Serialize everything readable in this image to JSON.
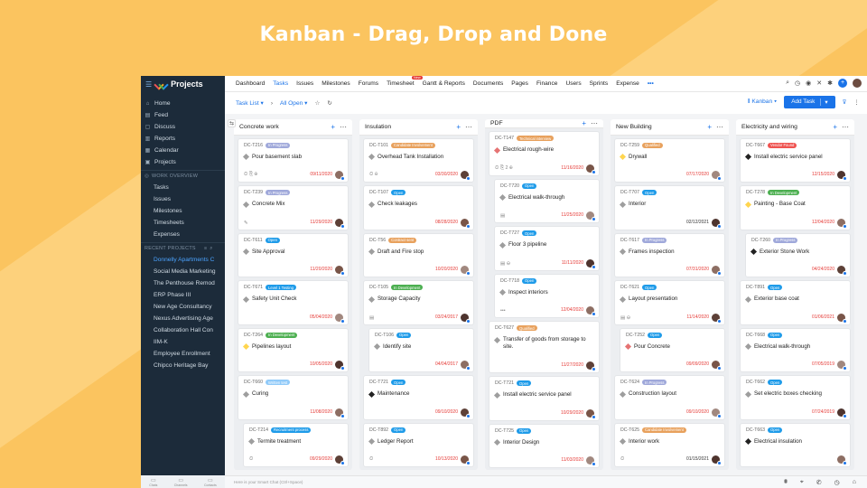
{
  "headline": "Kanban - Drag, Drop and Done",
  "sidebar": {
    "app_name": "Projects",
    "nav": [
      {
        "label": "Home",
        "icon": "home-icon",
        "glyph": "⌂"
      },
      {
        "label": "Feed",
        "icon": "feed-icon",
        "glyph": "▤"
      },
      {
        "label": "Discuss",
        "icon": "discuss-icon",
        "glyph": "▢"
      },
      {
        "label": "Reports",
        "icon": "reports-icon",
        "glyph": "▥"
      },
      {
        "label": "Calendar",
        "icon": "calendar-icon",
        "glyph": "▦"
      },
      {
        "label": "Projects",
        "icon": "projects-icon",
        "glyph": "▣"
      }
    ],
    "work_overview_title": "WORK OVERVIEW",
    "work_items": [
      "Tasks",
      "Issues",
      "Milestones",
      "Timesheets",
      "Expenses"
    ],
    "recent_title": "RECENT PROJECTS",
    "recent_projects": [
      "Donnelly Apartments C",
      "Social Media Marketing",
      "The Penthouse Remod",
      "ERP Phase III",
      "New Age Consultancy",
      "Nexus Advertising Age",
      "Collaboration Hall Con",
      "IIM-K",
      "Employee Enrollment",
      "Chipco Heritage Bay"
    ],
    "footer": [
      "Chats",
      "Channels",
      "Contacts"
    ]
  },
  "topnav": {
    "tabs": [
      "Dashboard",
      "Tasks",
      "Issues",
      "Milestones",
      "Forums",
      "Timesheet",
      "Gantt & Reports",
      "Documents",
      "Pages",
      "Finance",
      "Users",
      "Sprints",
      "Expense"
    ],
    "active": "Tasks",
    "timesheet_badge": "New",
    "more": "•••"
  },
  "toolbar": {
    "task_list": "Task List",
    "filter": "All Open",
    "view": "Kanban",
    "add_task": "Add Task"
  },
  "colors": {
    "blue": "#1a73e8",
    "pill_blue": "#1e9be9",
    "pill_lavender": "#9fa8da",
    "pill_orange": "#e8a15d",
    "pill_green": "#4caf50",
    "pill_red": "#ef5350",
    "pill_lightblue": "#90caf9",
    "diamond_gray": "#9e9e9e",
    "diamond_red": "#e57373",
    "diamond_yellow": "#ffd54f",
    "diamond_black": "#222222"
  },
  "columns": [
    {
      "title": "Concrete work",
      "cards": [
        {
          "id": "DC-T216",
          "status": "In Progress",
          "color": "#9fa8da",
          "title": "Pour basement slab",
          "date": "09/11/2020",
          "overdue": true,
          "diamond": "#9e9e9e",
          "meta": "⏲ ⎘ ⊕",
          "indent": false
        },
        {
          "id": "DC-T239",
          "status": "In Progress",
          "color": "#9fa8da",
          "title": "Concrete Mix",
          "date": "11/29/2020",
          "overdue": true,
          "diamond": "#9e9e9e",
          "meta": "✎",
          "indent": false
        },
        {
          "id": "DC-T611",
          "status": "Open",
          "color": "#1e9be9",
          "title": "Site Approval",
          "date": "11/20/2020",
          "overdue": true,
          "diamond": "#9e9e9e",
          "meta": "",
          "indent": false
        },
        {
          "id": "DC-T671",
          "status": "Level 1 Testing",
          "color": "#1e9be9",
          "title": "Safety Unit Check",
          "date": "05/04/2020",
          "overdue": true,
          "diamond": "#9e9e9e",
          "meta": "",
          "indent": false
        },
        {
          "id": "DC-T264",
          "status": "In Development",
          "color": "#4caf50",
          "title": "Pipelines layout",
          "date": "10/05/2020",
          "overdue": true,
          "diamond": "#ffd54f",
          "meta": "",
          "indent": false
        },
        {
          "id": "DC-T660",
          "status": "Written test",
          "color": "#90caf9",
          "title": "Curing",
          "date": "11/08/2020",
          "overdue": true,
          "diamond": "#9e9e9e",
          "meta": "",
          "indent": false
        },
        {
          "id": "DC-T214",
          "status": "Recruitment process",
          "color": "#1e9be9",
          "title": "Termite treatment",
          "date": "09/29/2020",
          "overdue": true,
          "diamond": "#9e9e9e",
          "meta": "⏲",
          "indent": true
        }
      ]
    },
    {
      "title": "Insulation",
      "cards": [
        {
          "id": "DC-T101",
          "status": "Candidate Involvement",
          "color": "#e8a15d",
          "title": "Overhead Tank Installation",
          "date": "03/30/2020",
          "overdue": true,
          "diamond": "#9e9e9e",
          "meta": "⏲ ⊖",
          "indent": false
        },
        {
          "id": "DC-T107",
          "status": "Open",
          "color": "#1e9be9",
          "title": "Check leakages",
          "date": "08/28/2020",
          "overdue": true,
          "diamond": "#9e9e9e",
          "meta": "",
          "indent": false
        },
        {
          "id": "DC-T56",
          "status": "Contract sent",
          "color": "#e8a15d",
          "title": "Draft and Fire stop",
          "date": "10/20/2020",
          "overdue": true,
          "diamond": "#9e9e9e",
          "meta": "",
          "indent": false
        },
        {
          "id": "DC-T105",
          "status": "In Development",
          "color": "#4caf50",
          "title": "Storage Capacity",
          "date": "03/24/2017",
          "overdue": true,
          "diamond": "#9e9e9e",
          "meta": "▤",
          "indent": false
        },
        {
          "id": "DC-T106",
          "status": "Open",
          "color": "#1e9be9",
          "title": "Identify site",
          "date": "04/04/2017",
          "overdue": true,
          "diamond": "#9e9e9e",
          "meta": "",
          "indent": true
        },
        {
          "id": "DC-T721",
          "status": "Open",
          "color": "#1e9be9",
          "title": "Maintenance",
          "date": "09/10/2020",
          "overdue": true,
          "diamond": "#222222",
          "meta": "",
          "indent": false
        },
        {
          "id": "DC-T892",
          "status": "Open",
          "color": "#1e9be9",
          "title": "Ledger Report",
          "date": "10/13/2020",
          "overdue": true,
          "diamond": "#9e9e9e",
          "meta": "⏲",
          "indent": false
        }
      ]
    },
    {
      "title": "PDF",
      "cards": [
        {
          "id": "DC-T147",
          "status": "Technical interview",
          "color": "#e8a15d",
          "title": "Electrical rough-wire",
          "date": "11/16/2020",
          "overdue": true,
          "diamond": "#e57373",
          "meta": "⏲ ⎘ 2 ⊕",
          "indent": false
        },
        {
          "id": "DC-T720",
          "status": "Open",
          "color": "#1e9be9",
          "title": "Electrical walk-through",
          "date": "11/25/2020",
          "overdue": true,
          "diamond": "#9e9e9e",
          "meta": "▤",
          "indent": true
        },
        {
          "id": "DC-T727",
          "status": "Open",
          "color": "#1e9be9",
          "title": "Floor 3 pipeline",
          "date": "11/11/2020",
          "overdue": true,
          "diamond": "#9e9e9e",
          "meta": "▤ ⊖",
          "indent": true
        },
        {
          "id": "DC-T718",
          "status": "Open",
          "color": "#1e9be9",
          "title": "Inspect interiors",
          "date": "12/04/2020",
          "overdue": true,
          "diamond": "#9e9e9e",
          "meta": "•••",
          "indent": true
        },
        {
          "id": "DC-T627",
          "status": "Qualified",
          "color": "#e8a15d",
          "title": "Transfer of goods from storage to site.",
          "date": "11/27/2020",
          "overdue": true,
          "diamond": "#9e9e9e",
          "meta": "",
          "indent": false,
          "tall": true
        },
        {
          "id": "DC-T721",
          "status": "Open",
          "color": "#1e9be9",
          "title": "Install electric service panel",
          "date": "10/29/2020",
          "overdue": true,
          "diamond": "#9e9e9e",
          "meta": "",
          "indent": false
        },
        {
          "id": "DC-T725",
          "status": "Open",
          "color": "#1e9be9",
          "title": "Interior Design",
          "date": "11/03/2020",
          "overdue": true,
          "diamond": "#9e9e9e",
          "meta": "",
          "indent": false
        }
      ]
    },
    {
      "title": "New Building",
      "cards": [
        {
          "id": "DC-T259",
          "status": "Qualified",
          "color": "#e8a15d",
          "title": "Drywall",
          "date": "07/17/2020",
          "overdue": true,
          "diamond": "#ffd54f",
          "meta": "",
          "indent": false
        },
        {
          "id": "DC-T707",
          "status": "Open",
          "color": "#1e9be9",
          "title": "Interior",
          "date": "02/12/2021",
          "overdue": false,
          "diamond": "#9e9e9e",
          "meta": "",
          "indent": false
        },
        {
          "id": "DC-T617",
          "status": "In Progress",
          "color": "#9fa8da",
          "title": "Frames inspection",
          "date": "07/31/2020",
          "overdue": true,
          "diamond": "#9e9e9e",
          "meta": "",
          "indent": false
        },
        {
          "id": "DC-T621",
          "status": "Open",
          "color": "#1e9be9",
          "title": "Layout presentation",
          "date": "11/14/2020",
          "overdue": true,
          "diamond": "#9e9e9e",
          "meta": "▤ ⊖",
          "indent": false
        },
        {
          "id": "DC-T252",
          "status": "Open",
          "color": "#1e9be9",
          "title": "Pour Concrete",
          "date": "09/09/2020",
          "overdue": true,
          "diamond": "#e57373",
          "meta": "",
          "indent": true
        },
        {
          "id": "DC-T624",
          "status": "In Progress",
          "color": "#9fa8da",
          "title": "Construction layout",
          "date": "09/10/2020",
          "overdue": true,
          "diamond": "#9e9e9e",
          "meta": "",
          "indent": false
        },
        {
          "id": "DC-T625",
          "status": "Candidate Involvement",
          "color": "#e8a15d",
          "title": "Interior work",
          "date": "01/15/2021",
          "overdue": false,
          "diamond": "#9e9e9e",
          "meta": "⏲",
          "indent": false
        }
      ]
    },
    {
      "title": "Electricity and wiring",
      "cards": [
        {
          "id": "DC-T667",
          "status": "Vendor Found",
          "color": "#ef5350",
          "title": "Install electric service panel",
          "date": "12/15/2020",
          "overdue": true,
          "diamond": "#222222",
          "meta": "",
          "indent": false
        },
        {
          "id": "DC-T278",
          "status": "In Development",
          "color": "#4caf50",
          "title": "Painting - Base Coat",
          "date": "12/04/2020",
          "overdue": true,
          "diamond": "#ffd54f",
          "meta": "",
          "indent": false
        },
        {
          "id": "DC-T260",
          "status": "In Progress",
          "color": "#9fa8da",
          "title": "Exterior Stone Work",
          "date": "04/24/2020",
          "overdue": true,
          "diamond": "#222222",
          "meta": "",
          "indent": true
        },
        {
          "id": "DC-T891",
          "status": "Open",
          "color": "#1e9be9",
          "title": "Exterior base coat",
          "date": "01/06/2021",
          "overdue": true,
          "diamond": "#9e9e9e",
          "meta": "",
          "indent": false
        },
        {
          "id": "DC-T668",
          "status": "Open",
          "color": "#1e9be9",
          "title": "Electrical walk-through",
          "date": "07/05/2019",
          "overdue": true,
          "diamond": "#9e9e9e",
          "meta": "",
          "indent": false
        },
        {
          "id": "DC-T662",
          "status": "Open",
          "color": "#1e9be9",
          "title": "Set electric boxes checking",
          "date": "07/24/2019",
          "overdue": true,
          "diamond": "#9e9e9e",
          "meta": "",
          "indent": false
        },
        {
          "id": "DC-T663",
          "status": "Open",
          "color": "#1e9be9",
          "title": "Electrical insulation",
          "date": "",
          "overdue": true,
          "diamond": "#222222",
          "meta": "",
          "indent": false
        }
      ]
    }
  ],
  "chatbar": {
    "placeholder": "Here is your Smart Chat (Ctrl+Space)"
  }
}
